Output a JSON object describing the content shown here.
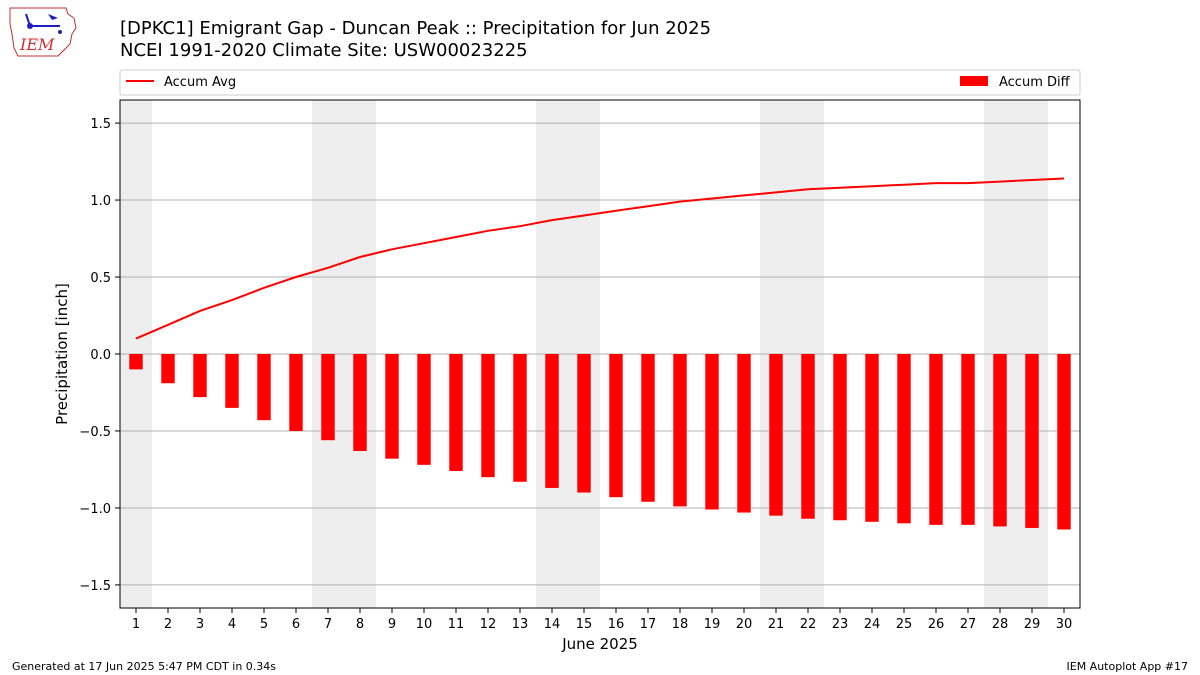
{
  "header": {
    "title_line1": "[DPKC1] Emigrant Gap - Duncan Peak :: Precipitation for Jun 2025",
    "title_line2": "NCEI 1991-2020 Climate Site: USW00023225",
    "logo_text": "IEM"
  },
  "footer": {
    "generated": "Generated at 17 Jun 2025 5:47 PM CDT in 0.34s",
    "app": "IEM Autoplot App #17"
  },
  "chart_data": {
    "type": "bar",
    "xlabel": "June 2025",
    "ylabel": "Precipitation [inch]",
    "ylim": [
      -1.65,
      1.65
    ],
    "yticks": [
      -1.5,
      -1.0,
      -0.5,
      0.0,
      0.5,
      1.0,
      1.5
    ],
    "ytick_labels": [
      "−1.5",
      "−1.0",
      "−0.5",
      "0.0",
      "0.5",
      "1.0",
      "1.5"
    ],
    "categories": [
      "1",
      "2",
      "3",
      "4",
      "5",
      "6",
      "7",
      "8",
      "9",
      "10",
      "11",
      "12",
      "13",
      "14",
      "15",
      "16",
      "17",
      "18",
      "19",
      "20",
      "21",
      "22",
      "23",
      "24",
      "25",
      "26",
      "27",
      "28",
      "29",
      "30"
    ],
    "grid": "horizontal",
    "legend_placement": "top, above plot",
    "weekend_shading_days": [
      1,
      7,
      8,
      14,
      15,
      21,
      22,
      28,
      29
    ],
    "series": [
      {
        "name": "Accum Avg",
        "type": "line",
        "color": "#ff0000",
        "values": [
          0.1,
          0.19,
          0.28,
          0.35,
          0.43,
          0.5,
          0.56,
          0.63,
          0.68,
          0.72,
          0.76,
          0.8,
          0.83,
          0.87,
          0.9,
          0.93,
          0.96,
          0.99,
          1.01,
          1.03,
          1.05,
          1.07,
          1.08,
          1.09,
          1.1,
          1.11,
          1.11,
          1.12,
          1.13,
          1.14
        ]
      },
      {
        "name": "Accum Diff",
        "type": "bar",
        "color": "#ff0000",
        "values": [
          -0.1,
          -0.19,
          -0.28,
          -0.35,
          -0.43,
          -0.5,
          -0.56,
          -0.63,
          -0.68,
          -0.72,
          -0.76,
          -0.8,
          -0.83,
          -0.87,
          -0.9,
          -0.93,
          -0.96,
          -0.99,
          -1.01,
          -1.03,
          -1.05,
          -1.07,
          -1.08,
          -1.09,
          -1.1,
          -1.11,
          -1.11,
          -1.12,
          -1.13,
          -1.14
        ]
      }
    ]
  }
}
